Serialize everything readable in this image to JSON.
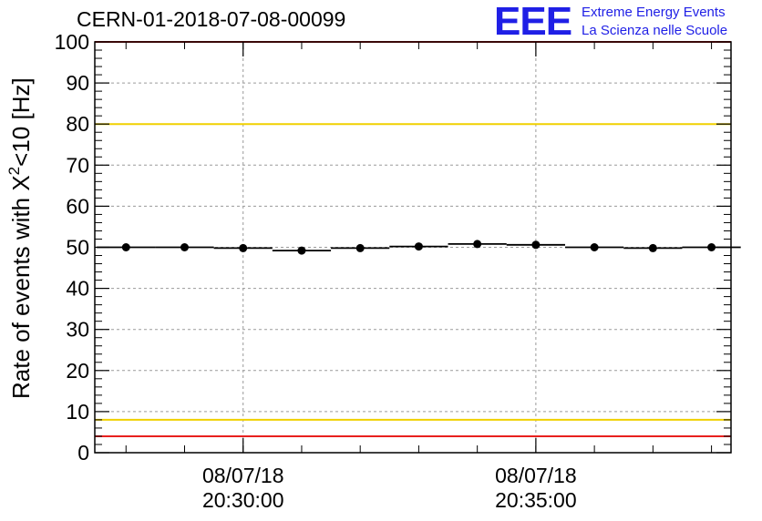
{
  "header": {
    "run_title": "CERN-01-2018-07-08-00099"
  },
  "logo": {
    "mark": "EEE",
    "line1": "Extreme Energy Events",
    "line2": "La Scienza nelle Scuole",
    "color": "#1f1fe6"
  },
  "chart_data": {
    "type": "scatter",
    "title": "CERN-01-2018-07-08-00099",
    "ylabel_main": "Rate of events with X",
    "ylabel_sup": "2",
    "ylabel_tail": "<10 [Hz]",
    "xlabel": "",
    "ylim": [
      0,
      100
    ],
    "y_ticks": [
      0,
      10,
      20,
      30,
      40,
      50,
      60,
      70,
      80,
      90,
      100
    ],
    "x_axis": "time",
    "x_range": [
      "2018-07-08 20:27:28",
      "2018-07-08 20:38:20"
    ],
    "x_tick_labels": [
      {
        "date": "08/07/18",
        "time": "20:30:00"
      },
      {
        "date": "08/07/18",
        "time": "20:35:00"
      }
    ],
    "grid": true,
    "reference_lines": [
      {
        "y": 100,
        "color": "#e8201e"
      },
      {
        "y": 80,
        "color": "#f0d000"
      },
      {
        "y": 8,
        "color": "#f0d000"
      },
      {
        "y": 4,
        "color": "#e8201e"
      }
    ],
    "series": [
      {
        "marker_color": "#000000",
        "bin_width_s": 60,
        "x": [
          "2018-07-08 20:28:00",
          "2018-07-08 20:29:00",
          "2018-07-08 20:30:00",
          "2018-07-08 20:31:00",
          "2018-07-08 20:32:00",
          "2018-07-08 20:33:00",
          "2018-07-08 20:34:00",
          "2018-07-08 20:35:00",
          "2018-07-08 20:36:00",
          "2018-07-08 20:37:00",
          "2018-07-08 20:38:00"
        ],
        "values": [
          50.0,
          50.0,
          49.8,
          49.2,
          49.8,
          50.2,
          50.8,
          50.6,
          50.0,
          49.8,
          50.0
        ]
      }
    ]
  }
}
